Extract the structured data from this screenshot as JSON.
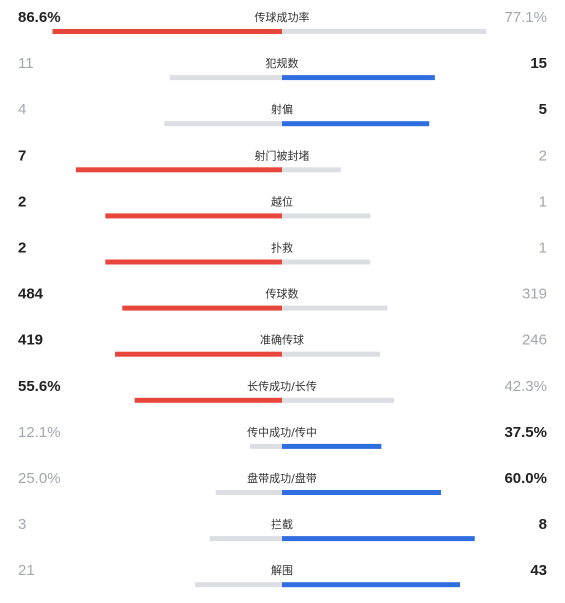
{
  "colors": {
    "home": "#e8463d",
    "away": "#2f6ee0",
    "muted": "#dcdee3"
  },
  "stats": [
    {
      "label": "传球成功率",
      "values": [
        86.6,
        77.1
      ],
      "value_labels": [
        "86.6%",
        "77.1%"
      ]
    },
    {
      "label": "犯规数",
      "values": [
        11,
        15
      ]
    },
    {
      "label": "射偏",
      "values": [
        4,
        5
      ]
    },
    {
      "label": "射门被封堵",
      "values": [
        7,
        2
      ]
    },
    {
      "label": "越位",
      "values": [
        2,
        1
      ]
    },
    {
      "label": "扑救",
      "values": [
        2,
        1
      ]
    },
    {
      "label": "传球数",
      "values": [
        484,
        319
      ]
    },
    {
      "label": "准确传球",
      "values": [
        419,
        246
      ]
    },
    {
      "label": "长传成功/长传",
      "values": [
        55.6,
        42.3
      ],
      "value_labels": [
        "55.6%",
        "42.3%"
      ]
    },
    {
      "label": "传中成功/传中",
      "values": [
        12.1,
        37.5
      ],
      "value_labels": [
        "12.1%",
        "37.5%"
      ]
    },
    {
      "label": "盘带成功/盘带",
      "values": [
        25.0,
        60.0
      ],
      "value_labels": [
        "25.0%",
        "60.0%"
      ]
    },
    {
      "label": "拦截",
      "values": [
        3,
        8
      ]
    },
    {
      "label": "解围",
      "values": [
        21,
        43
      ]
    }
  ]
}
